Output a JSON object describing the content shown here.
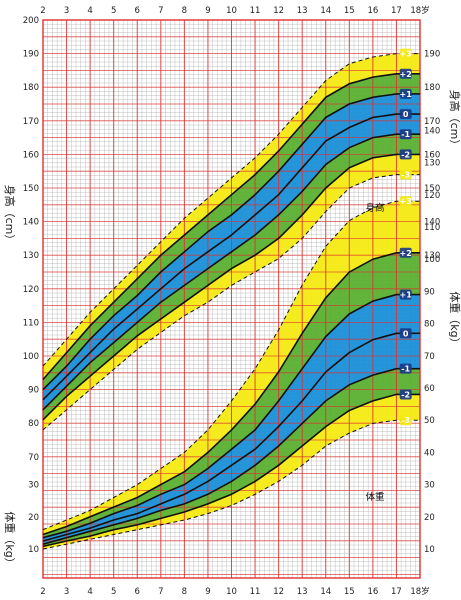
{
  "chart_data": {
    "type": "line",
    "x_ticks_top": [
      "2",
      "3",
      "4",
      "5",
      "6",
      "7",
      "8",
      "9",
      "10",
      "11",
      "12",
      "13",
      "14",
      "15",
      "16",
      "17",
      "18岁"
    ],
    "x_ticks_bottom": [
      "2",
      "3",
      "4",
      "5",
      "6",
      "7",
      "8",
      "9",
      "10",
      "11",
      "12",
      "13",
      "14",
      "15",
      "16",
      "17",
      "18岁"
    ],
    "x": [
      2,
      3,
      4,
      5,
      6,
      7,
      8,
      9,
      10,
      11,
      12,
      13,
      14,
      15,
      16,
      17,
      18
    ],
    "height": {
      "axis_title": "身高（cm）",
      "ticks": [
        "200",
        "190",
        "180",
        "170",
        "160",
        "150",
        "140",
        "130",
        "120",
        "110",
        "100",
        "90",
        "80",
        "70"
      ],
      "right_ticks": [
        "190",
        "180",
        "170",
        "160",
        "150",
        "140",
        "130"
      ],
      "label": "身高",
      "ylim": [
        60,
        200
      ],
      "series": [
        {
          "name": "+3",
          "values": [
            97,
            105,
            113,
            120,
            127,
            134,
            141,
            147,
            153,
            159,
            166,
            174,
            182,
            187,
            189,
            190,
            190
          ]
        },
        {
          "name": "+2",
          "values": [
            93,
            101,
            109,
            116,
            123,
            130,
            136,
            142,
            148,
            154,
            161,
            169,
            177,
            181,
            183,
            184,
            184
          ]
        },
        {
          "name": "+1",
          "values": [
            90,
            97,
            105,
            112,
            118,
            125,
            131,
            137,
            142,
            148,
            155,
            163,
            171,
            175,
            177,
            178,
            178
          ]
        },
        {
          "name": "0",
          "values": [
            87,
            94,
            101,
            108,
            114,
            120,
            126,
            131,
            136,
            142,
            148,
            156,
            164,
            168,
            171,
            172,
            172
          ]
        },
        {
          "name": "-1",
          "values": [
            84,
            91,
            98,
            104,
            110,
            116,
            121,
            126,
            131,
            136,
            142,
            149,
            157,
            162,
            165,
            166,
            166
          ]
        },
        {
          "name": "-2",
          "values": [
            81,
            88,
            94,
            100,
            106,
            111,
            116,
            121,
            126,
            130,
            135,
            142,
            150,
            156,
            159,
            160,
            160
          ]
        },
        {
          "name": "-3",
          "values": [
            78,
            84,
            90,
            96,
            102,
            107,
            112,
            116,
            121,
            125,
            129,
            135,
            143,
            150,
            153,
            154,
            154
          ]
        }
      ]
    },
    "weight": {
      "axis_title": "体重（kg）",
      "ticks": [
        "30",
        "20",
        "10"
      ],
      "right_ticks": [
        "140",
        "130",
        "120",
        "110",
        "100",
        "90",
        "80",
        "70",
        "60",
        "50",
        "40",
        "30",
        "20",
        "10"
      ],
      "label": "体重",
      "ylim": [
        0,
        145
      ],
      "series": [
        {
          "name": "+3",
          "values": [
            16,
            19,
            22,
            26,
            30,
            35,
            40,
            47,
            56,
            66,
            78,
            92,
            104,
            112,
            116,
            118,
            118
          ]
        },
        {
          "name": "+2",
          "values": [
            14.5,
            17,
            20,
            23,
            26,
            30,
            34,
            40,
            47,
            55,
            65,
            77,
            88,
            96,
            100,
            102,
            102
          ]
        },
        {
          "name": "+1",
          "values": [
            13.5,
            15.5,
            18,
            21,
            23.5,
            27,
            30,
            35,
            41,
            47,
            56,
            66,
            76,
            83,
            87,
            89,
            89
          ]
        },
        {
          "name": "0",
          "values": [
            12.5,
            14.5,
            16.5,
            19,
            21,
            24,
            27,
            31,
            36,
            41,
            48,
            56,
            65,
            71,
            75,
            77,
            77
          ]
        },
        {
          "name": "-1",
          "values": [
            11.5,
            13.5,
            15.5,
            17.5,
            19.5,
            22,
            24,
            27,
            31,
            36,
            42,
            49,
            56,
            61,
            64,
            66,
            66
          ]
        },
        {
          "name": "-2",
          "values": [
            10.8,
            12.5,
            14,
            16,
            17.5,
            19.5,
            21.5,
            24,
            27,
            31,
            36,
            42,
            48,
            53,
            56,
            58,
            58
          ]
        },
        {
          "name": "-3",
          "values": [
            10,
            11.5,
            13,
            14.5,
            16,
            17.5,
            19,
            21,
            23.5,
            27,
            31,
            36,
            42,
            46,
            49,
            50,
            50
          ]
        }
      ]
    },
    "colors": {
      "grid_major": "#e0302f",
      "grid_minor": "#b0b0b0",
      "outer_band": "#f4ea12",
      "middle_band": "#5ab030",
      "inner_band": "#1a8fd8",
      "curve": "#111111"
    }
  }
}
